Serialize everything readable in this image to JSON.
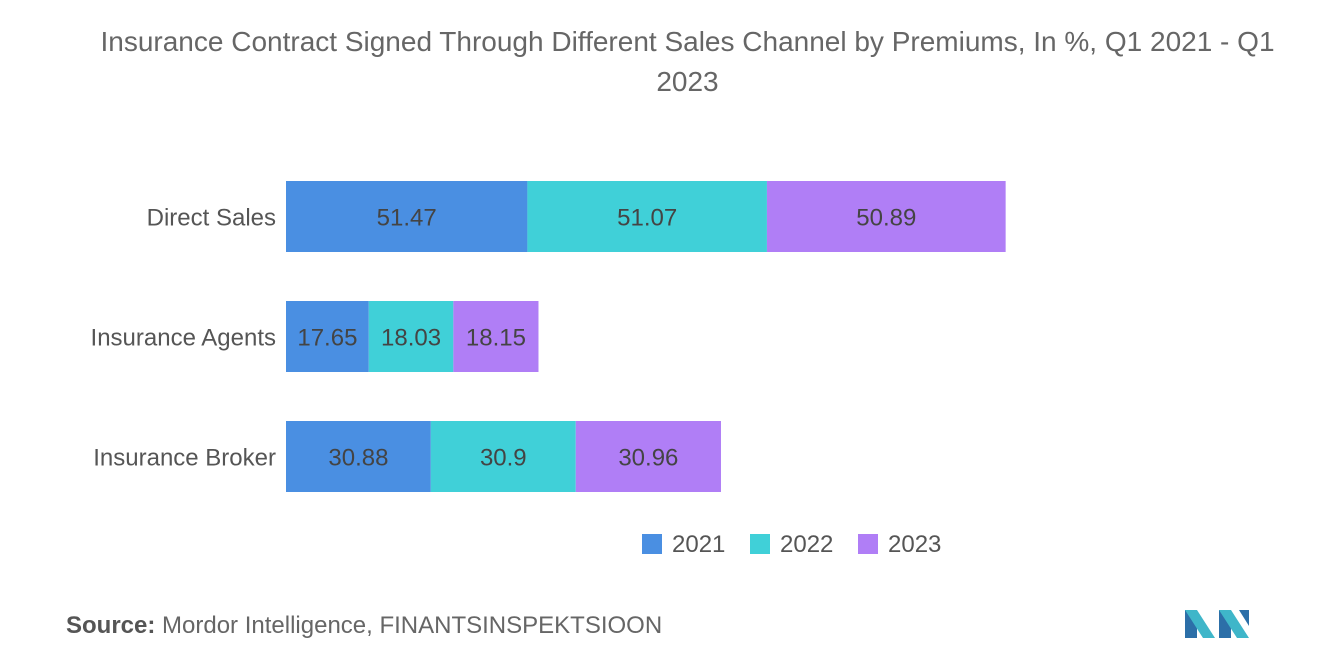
{
  "chart_data": {
    "type": "bar",
    "orientation": "horizontal",
    "stacked": true,
    "title": "Insurance Contract Signed Through Different Sales Channel by Premiums, In %, Q1 2021 - Q1 2023",
    "categories": [
      "Direct Sales",
      "Insurance Agents",
      "Insurance Broker"
    ],
    "series": [
      {
        "name": "2021",
        "values": [
          51.47,
          17.65,
          30.88
        ]
      },
      {
        "name": "2022",
        "values": [
          51.07,
          18.03,
          30.9
        ]
      },
      {
        "name": "2023",
        "values": [
          50.89,
          18.15,
          30.96
        ]
      }
    ],
    "data_labels": [
      [
        "51.47",
        "17.65",
        "30.88"
      ],
      [
        "51.07",
        "18.03",
        "30.9"
      ],
      [
        "50.89",
        "18.15",
        "30.96"
      ]
    ],
    "legend_position": "bottom",
    "grid": false,
    "xlim": [
      0,
      155
    ],
    "colors": [
      "#4a8fe2",
      "#40d0d8",
      "#b07ef6"
    ]
  },
  "source": {
    "label": "Source:",
    "text": "Mordor Intelligence, FINANTSINSPEKTSIOON"
  },
  "logo": {
    "icon": "mordor-intelligence-logo"
  }
}
